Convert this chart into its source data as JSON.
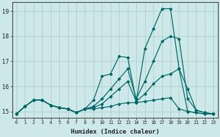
{
  "xlabel": "Humidex (Indice chaleur)",
  "background_color": "#cce8e8",
  "grid_color": "#b0cccc",
  "line_color": "#006666",
  "xlim": [
    -0.5,
    23.5
  ],
  "ylim": [
    14.75,
    19.35
  ],
  "yticks": [
    15,
    16,
    17,
    18,
    19
  ],
  "xticks": [
    0,
    1,
    2,
    3,
    4,
    5,
    6,
    7,
    8,
    9,
    10,
    11,
    12,
    13,
    14,
    15,
    16,
    17,
    18,
    19,
    20,
    21,
    22,
    23
  ],
  "series": [
    {
      "x": [
        0,
        1,
        2,
        3,
        4,
        5,
        6,
        7,
        8,
        9,
        10,
        11,
        12,
        13,
        14,
        15,
        16,
        17,
        18,
        19,
        20,
        21,
        22,
        23
      ],
      "y": [
        14.9,
        15.2,
        15.45,
        15.45,
        15.25,
        15.15,
        15.1,
        14.95,
        15.1,
        15.45,
        16.4,
        16.5,
        17.2,
        17.15,
        15.4,
        17.5,
        18.3,
        19.1,
        19.1,
        16.7,
        15.9,
        15.05,
        14.95,
        14.9
      ]
    },
    {
      "x": [
        0,
        1,
        2,
        3,
        4,
        5,
        6,
        7,
        8,
        9,
        10,
        11,
        12,
        13,
        14,
        15,
        16,
        17,
        18,
        19,
        20,
        21,
        22,
        23
      ],
      "y": [
        14.9,
        15.2,
        15.45,
        15.45,
        15.25,
        15.15,
        15.1,
        14.95,
        15.1,
        15.2,
        15.5,
        15.9,
        16.3,
        16.7,
        15.5,
        16.2,
        17.0,
        17.8,
        18.0,
        17.9,
        15.5,
        15.05,
        14.95,
        14.9
      ]
    },
    {
      "x": [
        0,
        1,
        2,
        3,
        4,
        5,
        6,
        7,
        8,
        9,
        10,
        11,
        12,
        13,
        14,
        15,
        16,
        17,
        18,
        19,
        20,
        21,
        22,
        23
      ],
      "y": [
        14.9,
        15.2,
        15.45,
        15.45,
        15.25,
        15.15,
        15.1,
        14.95,
        15.1,
        15.15,
        15.3,
        15.6,
        15.9,
        16.2,
        15.4,
        15.7,
        16.1,
        16.4,
        16.5,
        16.7,
        15.0,
        14.95,
        14.9,
        14.9
      ]
    },
    {
      "x": [
        0,
        1,
        2,
        3,
        4,
        5,
        6,
        7,
        8,
        9,
        10,
        11,
        12,
        13,
        14,
        15,
        16,
        17,
        18,
        19,
        20,
        21,
        22,
        23
      ],
      "y": [
        14.9,
        15.2,
        15.45,
        15.45,
        15.25,
        15.15,
        15.1,
        14.95,
        15.1,
        15.1,
        15.15,
        15.2,
        15.3,
        15.35,
        15.35,
        15.4,
        15.45,
        15.5,
        15.55,
        15.1,
        15.0,
        14.95,
        14.9,
        14.9
      ]
    }
  ]
}
